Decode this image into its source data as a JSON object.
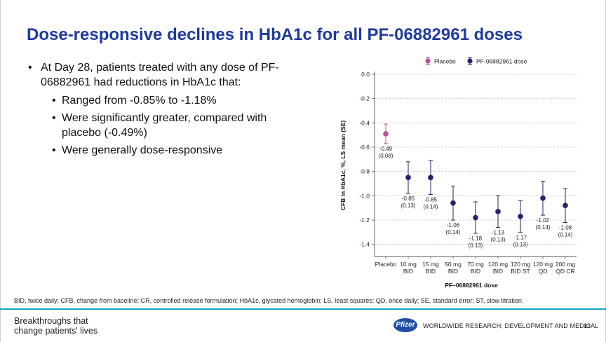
{
  "slide": {
    "title": "Dose-responsive declines in HbA1c for all PF-06882961 doses",
    "bullet_main": "At Day 28, patients treated with any dose of PF-06882961 had reductions in HbA1c that:",
    "sub_bullets": [
      "Ranged from -0.85% to -1.18%",
      "Were significantly greater, compared with placebo (-0.49%)",
      "Were generally dose-responsive"
    ],
    "footnote": "BID, twice daily; CFB, change from baseline; CR, controlled release formulation; HbA1c, glycated hemoglobin; LS, least squares; QD, once daily; SE, standard error; ST, slow titration.",
    "tagline_line1": "Breakthroughs that",
    "tagline_line2": "change patients' lives",
    "logo_text": "Pfizer",
    "division": "WORLDWIDE RESEARCH, DEVELOPMENT AND MEDICAL",
    "page_number": "13"
  },
  "chart_data": {
    "type": "scatter",
    "title": "",
    "xlabel": "PF–06882961 dose",
    "ylabel": "CFB in HbA1c, %, LS mean (SE)",
    "ylim": [
      -1.5,
      0.0
    ],
    "yticks": [
      0.0,
      -0.2,
      -0.4,
      -0.6,
      -0.8,
      -1.0,
      -1.2,
      -1.4
    ],
    "ytick_labels": [
      "0.0",
      "-0.2",
      "-0.4",
      "-0.6",
      "-0.8",
      "-1.0",
      "-1.2",
      "-1.4"
    ],
    "grid": "horizontal dashed",
    "legend": "top-right",
    "legend_entries": [
      "Placebo",
      "PF-06882961 dose"
    ],
    "colors": {
      "placebo": "#c04fa0",
      "drug": "#2a1f6e",
      "grid": "#c8c8c8"
    },
    "categories": [
      [
        "Placebo"
      ],
      [
        "10 mg",
        "BID"
      ],
      [
        "15 mg",
        "BID"
      ],
      [
        "50 mg",
        "BID"
      ],
      [
        "70 mg",
        "BID"
      ],
      [
        "120 mg",
        "BID"
      ],
      [
        "120 mg",
        "BID ST"
      ],
      [
        "120 mg",
        "QD"
      ],
      [
        "200 mg",
        "QD CR"
      ]
    ],
    "points": [
      {
        "group": "placebo",
        "mean": -0.49,
        "se": 0.08,
        "label": "-0.49",
        "se_label": "(0.08)"
      },
      {
        "group": "drug",
        "mean": -0.85,
        "se": 0.13,
        "label": "-0.85",
        "se_label": "(0.13)"
      },
      {
        "group": "drug",
        "mean": -0.85,
        "se": 0.14,
        "label": "-0.85",
        "se_label": "(0.14)"
      },
      {
        "group": "drug",
        "mean": -1.06,
        "se": 0.14,
        "label": "-1.06",
        "se_label": "(0.14)"
      },
      {
        "group": "drug",
        "mean": -1.18,
        "se": 0.13,
        "label": "-1.18",
        "se_label": "(0.13)"
      },
      {
        "group": "drug",
        "mean": -1.13,
        "se": 0.13,
        "label": "-1.13",
        "se_label": "(0.13)"
      },
      {
        "group": "drug",
        "mean": -1.17,
        "se": 0.13,
        "label": "-1.17",
        "se_label": "(0.13)"
      },
      {
        "group": "drug",
        "mean": -1.02,
        "se": 0.14,
        "label": "-1.02",
        "se_label": "(0.14)"
      },
      {
        "group": "drug",
        "mean": -1.08,
        "se": 0.14,
        "label": "-1.08",
        "se_label": "(0.14)"
      }
    ]
  }
}
